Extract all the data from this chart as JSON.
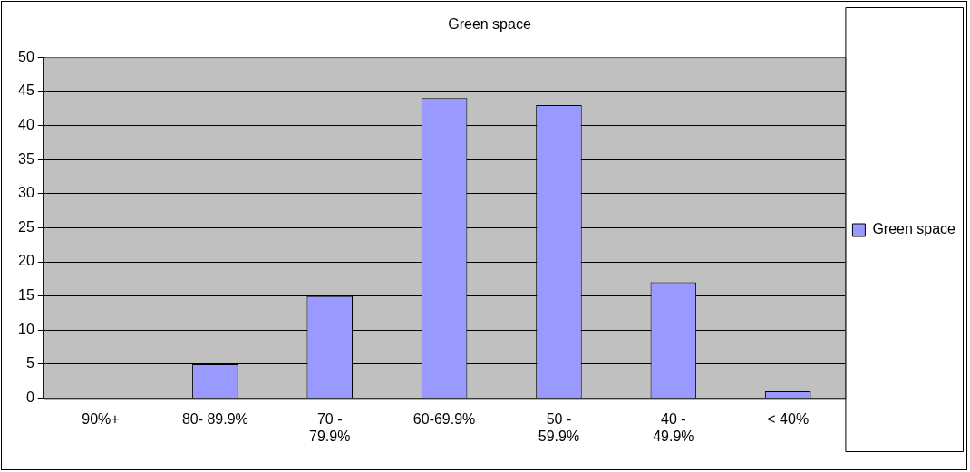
{
  "chart_data": {
    "type": "bar",
    "title": "Green space",
    "categories": [
      "90%+",
      "80- 89.9%",
      "70 - 79.9%",
      "60-69.9%",
      "50 - 59.9%",
      "40 - 49.9%",
      "< 40%"
    ],
    "series": [
      {
        "name": "Green space",
        "color": "#9999ff",
        "values": [
          0,
          5,
          15,
          44,
          43,
          17,
          1
        ]
      }
    ],
    "ylim": [
      0,
      50
    ],
    "yticks": [
      0,
      5,
      10,
      15,
      20,
      25,
      30,
      35,
      40,
      45,
      50
    ],
    "grid": "y",
    "legend": "right"
  }
}
